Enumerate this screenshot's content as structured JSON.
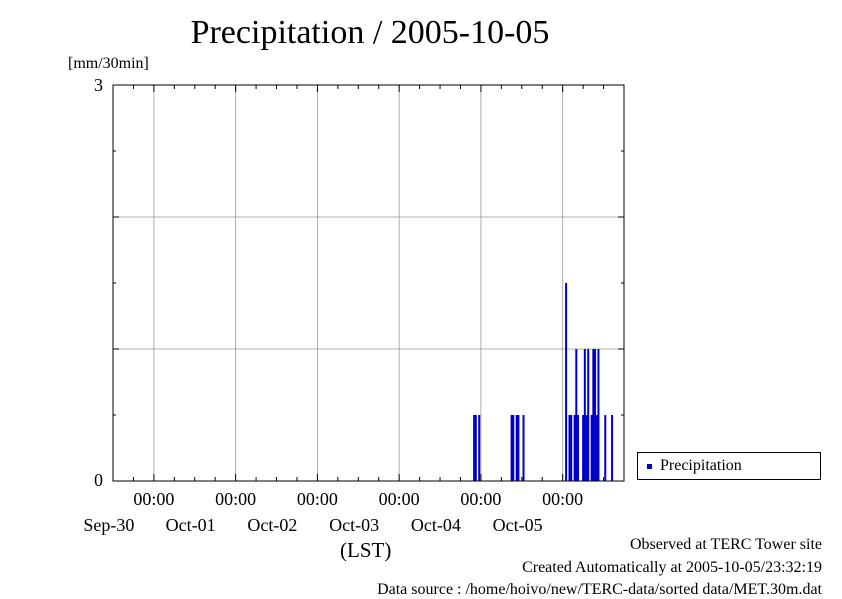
{
  "title": "Precipitation / 2005-10-05",
  "y_unit": "[mm/30min]",
  "x_axis_label": "(LST)",
  "legend": {
    "label": "Precipitation",
    "color": "#0000cc"
  },
  "footer": {
    "line1": "Observed at TERC Tower site",
    "line2": "Created Automatically at 2005-10-05/23:32:19",
    "line3": "Data source : /home/hoivo/new/TERC-data/sorted  data/MET.30m.dat"
  },
  "chart_data": {
    "type": "bar",
    "title": "Precipitation / 2005-10-05",
    "ylabel": "[mm/30min]",
    "xlabel": "(LST)",
    "ylim": [
      0,
      3
    ],
    "y_tick_labels": [
      "0",
      "3"
    ],
    "y_gridlines": [
      0,
      1,
      2,
      3
    ],
    "x_range": [
      "2005-09-29 12:00",
      "2005-10-05 18:00"
    ],
    "x_tick_labels": [
      {
        "time": "00:00",
        "date": "Sep-30"
      },
      {
        "time": "00:00",
        "date": "Oct-01"
      },
      {
        "time": "00:00",
        "date": "Oct-02"
      },
      {
        "time": "00:00",
        "date": "Oct-03"
      },
      {
        "time": "00:00",
        "date": "Oct-04"
      },
      {
        "time": "00:00",
        "date": "Oct-05"
      }
    ],
    "grid": true,
    "legend_position": "right",
    "series": [
      {
        "name": "Precipitation",
        "color": "#0000cc",
        "points": [
          {
            "t": "2005-10-03 22:00",
            "v": 0.5
          },
          {
            "t": "2005-10-03 22:30",
            "v": 0.5
          },
          {
            "t": "2005-10-03 23:30",
            "v": 0.5
          },
          {
            "t": "2005-10-04 09:00",
            "v": 0.5
          },
          {
            "t": "2005-10-04 09:30",
            "v": 0.5
          },
          {
            "t": "2005-10-04 10:30",
            "v": 0.5
          },
          {
            "t": "2005-10-04 11:00",
            "v": 0.5
          },
          {
            "t": "2005-10-04 12:30",
            "v": 0.5
          },
          {
            "t": "2005-10-05 01:00",
            "v": 1.5
          },
          {
            "t": "2005-10-05 02:00",
            "v": 0.5
          },
          {
            "t": "2005-10-05 02:30",
            "v": 0.5
          },
          {
            "t": "2005-10-05 03:30",
            "v": 0.5
          },
          {
            "t": "2005-10-05 04:00",
            "v": 1.0
          },
          {
            "t": "2005-10-05 04:30",
            "v": 0.5
          },
          {
            "t": "2005-10-05 06:00",
            "v": 0.5
          },
          {
            "t": "2005-10-05 06:30",
            "v": 1.0
          },
          {
            "t": "2005-10-05 07:00",
            "v": 0.5
          },
          {
            "t": "2005-10-05 07:30",
            "v": 1.0
          },
          {
            "t": "2005-10-05 08:30",
            "v": 0.5
          },
          {
            "t": "2005-10-05 09:00",
            "v": 1.0
          },
          {
            "t": "2005-10-05 09:30",
            "v": 1.0
          },
          {
            "t": "2005-10-05 10:00",
            "v": 0.5
          },
          {
            "t": "2005-10-05 10:30",
            "v": 1.0
          },
          {
            "t": "2005-10-05 12:30",
            "v": 0.5
          },
          {
            "t": "2005-10-05 14:30",
            "v": 0.5
          }
        ]
      }
    ]
  }
}
